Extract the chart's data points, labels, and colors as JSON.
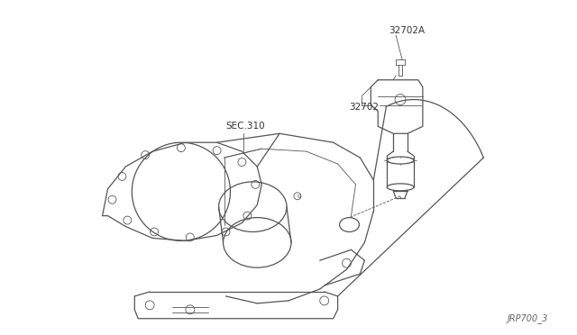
{
  "bg_color": "#ffffff",
  "line_color": "#555555",
  "text_color": "#333333",
  "title_label": "JRP700_3",
  "label_32702A": "32702A",
  "label_32702": "32702",
  "label_sec310": "SEC.310",
  "font_size_labels": 7.5,
  "font_size_title": 7
}
